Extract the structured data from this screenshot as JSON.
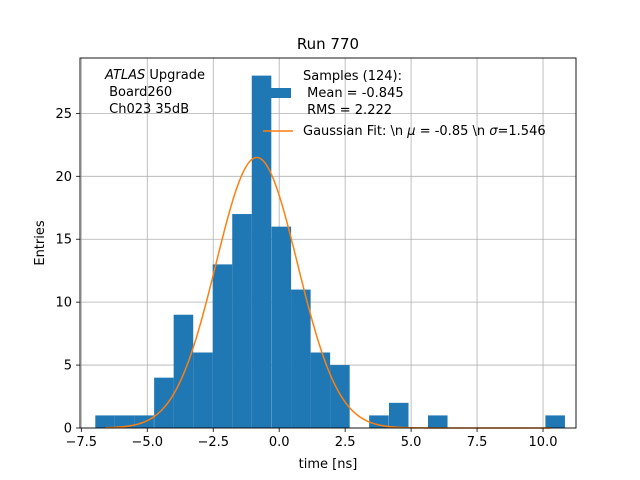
{
  "chart_data": {
    "type": "bar",
    "title": "Run 770",
    "xlabel": "time [ns]",
    "ylabel": "Entries",
    "xlim": [
      -7.55,
      11.25
    ],
    "ylim": [
      0,
      29.4
    ],
    "xticks": [
      -7.5,
      -5.0,
      -2.5,
      0.0,
      2.5,
      5.0,
      7.5,
      10.0
    ],
    "xtick_labels": [
      "−7.5",
      "−5.0",
      "−2.5",
      "0.0",
      "2.5",
      "5.0",
      "7.5",
      "10.0"
    ],
    "yticks": [
      0,
      5,
      10,
      15,
      20,
      25
    ],
    "ytick_labels": [
      "0",
      "5",
      "10",
      "15",
      "20",
      "25"
    ],
    "grid": true,
    "bin_width": 0.7413,
    "histogram": {
      "name": "Samples (124):",
      "color": "#1f77b4",
      "bins": [
        {
          "x0": -6.97,
          "count": 1
        },
        {
          "x0": -6.23,
          "count": 1
        },
        {
          "x0": -5.49,
          "count": 1
        },
        {
          "x0": -4.74,
          "count": 4
        },
        {
          "x0": -4.0,
          "count": 9
        },
        {
          "x0": -3.26,
          "count": 6
        },
        {
          "x0": -2.52,
          "count": 13
        },
        {
          "x0": -1.78,
          "count": 17
        },
        {
          "x0": -1.04,
          "count": 28
        },
        {
          "x0": -0.29,
          "count": 16
        },
        {
          "x0": 0.45,
          "count": 11
        },
        {
          "x0": 1.19,
          "count": 6
        },
        {
          "x0": 1.93,
          "count": 5
        },
        {
          "x0": 2.67,
          "count": 0
        },
        {
          "x0": 3.41,
          "count": 1
        },
        {
          "x0": 4.16,
          "count": 2
        },
        {
          "x0": 4.9,
          "count": 0
        },
        {
          "x0": 5.64,
          "count": 1
        },
        {
          "x0": 6.38,
          "count": 0
        },
        {
          "x0": 7.12,
          "count": 0
        },
        {
          "x0": 7.86,
          "count": 0
        },
        {
          "x0": 8.6,
          "count": 0
        },
        {
          "x0": 9.35,
          "count": 0
        },
        {
          "x0": 10.09,
          "count": 1
        }
      ]
    },
    "fit": {
      "name": "Gaussian Fit: \\n μ = -0.85 \\n σ=1.546",
      "color": "#ff7f0e",
      "mu": -0.85,
      "sigma": 1.546,
      "amplitude": 21.5,
      "x_range": [
        -6.6,
        10.3
      ]
    },
    "legend": {
      "placement": "top-right",
      "samples_line1": "Samples (124):",
      "samples_line2": " Mean = -0.845",
      "samples_line3": " RMS = 2.222",
      "fit_label_pre": "Gaussian Fit: \\n ",
      "fit_mu": "μ",
      "fit_label_mid": " = -0.85 \\n ",
      "fit_sigma": "σ",
      "fit_label_post": "=1.546"
    },
    "annotation": {
      "italic_word": "ATLAS",
      "rest_line1": " Upgrade",
      "line2": " Board260",
      "line3": " Ch023 35dB"
    }
  }
}
